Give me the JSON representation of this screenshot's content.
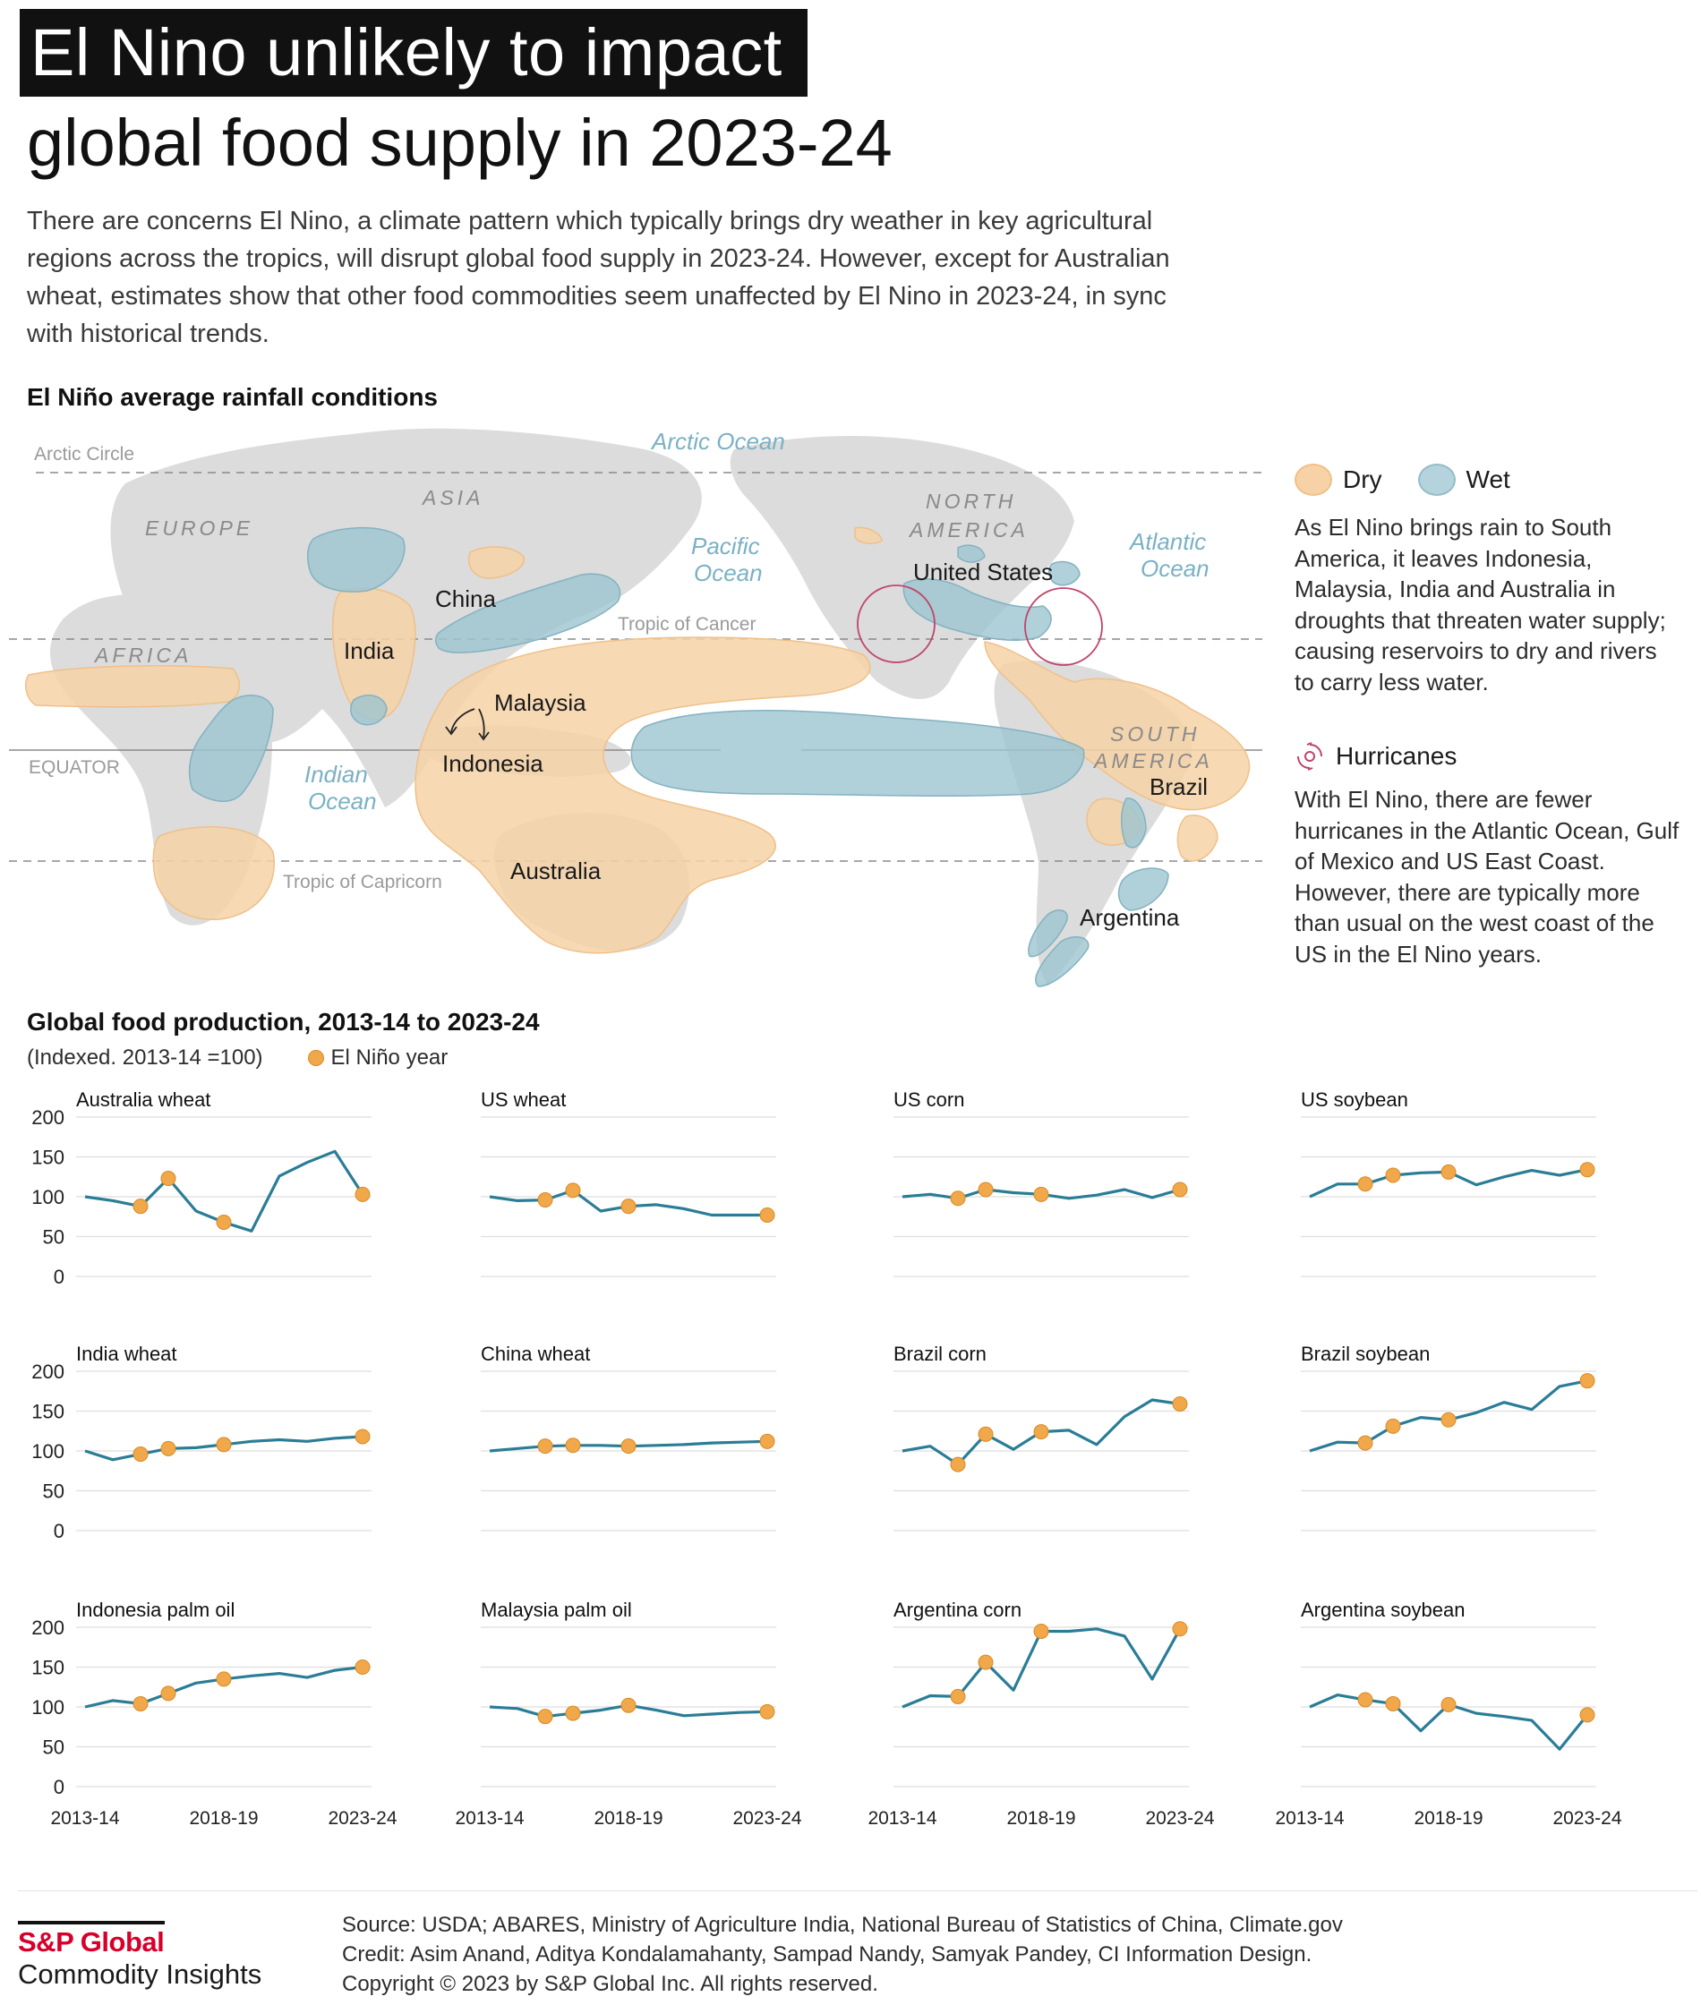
{
  "header": {
    "title_line1": "El Nino unlikely to impact",
    "title_line2": "global food supply in 2023-24",
    "intro": "There are concerns El Nino, a climate pattern which typically brings dry weather in key agricultural regions across the tropics, will disrupt global food supply in 2023-24. However, except for Australian wheat, estimates show that other food commodities seem unaffected by El Nino in 2023-24, in sync with historical trends."
  },
  "map": {
    "title": "El Niño average rainfall conditions",
    "lines": {
      "arctic": "Arctic Circle",
      "cancer": "Tropic of Cancer",
      "equator": "EQUATOR",
      "capricorn": "Tropic of Capricorn"
    },
    "oceans": {
      "arctic": "Arctic Ocean",
      "pacific1": "Pacific",
      "pacific2": "Ocean",
      "atlantic1": "Atlantic",
      "atlantic2": "Ocean",
      "indian1": "Indian",
      "indian2": "Ocean"
    },
    "continents": {
      "europe": "EUROPE",
      "asia": "ASIA",
      "africa": "AFRICA",
      "north_america1": "NORTH",
      "north_america2": "AMERICA",
      "south_america1": "SOUTH",
      "south_america2": "AMERICA"
    },
    "countries": {
      "china": "China",
      "india": "India",
      "malaysia": "Malaysia",
      "indonesia": "Indonesia",
      "australia": "Australia",
      "united_states": "United States",
      "brazil": "Brazil",
      "argentina": "Argentina"
    },
    "colors": {
      "dry": "#f6d2a6",
      "wet": "#9cc4d1",
      "land": "#dcdcdc",
      "hurricane": "#c0446a"
    }
  },
  "legend": {
    "dry": "Dry",
    "wet": "Wet",
    "dry_wet_text": "As El Nino brings rain to South America, it leaves Indonesia, Malaysia, India and Australia in droughts that threaten water supply; causing reservoirs to dry and rivers to carry less water.",
    "hurricanes": "Hurricanes",
    "hurricanes_text": "With El Nino, there are fewer hurricanes in the Atlantic Ocean, Gulf of Mexico and US East Coast. However, there are typically more than usual on the west coast of the US in the El Nino years."
  },
  "production": {
    "title": "Global food production, 2013-14 to 2023-24",
    "note": "(Indexed. 2013-14 =100)",
    "el_nino_label": "El Niño year"
  },
  "chart_data": {
    "type": "line",
    "title": "Global food production, 2013-14 to 2023-24",
    "subtitle": "(Indexed. 2013-14 =100)",
    "x": [
      "2013-14",
      "2014-15",
      "2015-16",
      "2016-17",
      "2017-18",
      "2018-19",
      "2019-20",
      "2020-21",
      "2021-22",
      "2022-23",
      "2023-24"
    ],
    "x_tick_labels": [
      "2013-14",
      "2018-19",
      "2023-24"
    ],
    "y_ticks": [
      0,
      50,
      100,
      150,
      200
    ],
    "ylim": [
      0,
      200
    ],
    "el_nino_indices": [
      2,
      3,
      5,
      10
    ],
    "colors": {
      "line": "#2a7d96",
      "el_nino_marker": "#f0a84a"
    },
    "series": [
      {
        "name": "Australia wheat",
        "values": [
          100,
          95,
          88,
          123,
          82,
          68,
          57,
          126,
          143,
          157,
          103
        ]
      },
      {
        "name": "US wheat",
        "values": [
          100,
          95,
          96,
          108,
          82,
          88,
          90,
          85,
          77,
          77,
          77
        ]
      },
      {
        "name": "US corn",
        "values": [
          100,
          103,
          98,
          109,
          105,
          103,
          98,
          102,
          109,
          99,
          109
        ]
      },
      {
        "name": "US soybean",
        "values": [
          100,
          116,
          116,
          127,
          130,
          131,
          115,
          125,
          133,
          127,
          134
        ]
      },
      {
        "name": "India wheat",
        "values": [
          100,
          89,
          96,
          103,
          104,
          108,
          112,
          114,
          112,
          116,
          118
        ]
      },
      {
        "name": "China wheat",
        "values": [
          100,
          103,
          106,
          107,
          107,
          106,
          107,
          108,
          110,
          111,
          112
        ]
      },
      {
        "name": "Brazil corn",
        "values": [
          100,
          106,
          83,
          121,
          102,
          124,
          126,
          108,
          143,
          164,
          159
        ]
      },
      {
        "name": "Brazil soybean",
        "values": [
          100,
          111,
          110,
          131,
          142,
          139,
          148,
          161,
          152,
          181,
          188
        ]
      },
      {
        "name": "Indonesia palm oil",
        "values": [
          100,
          108,
          104,
          117,
          130,
          135,
          139,
          142,
          137,
          146,
          150
        ]
      },
      {
        "name": "Malaysia palm oil",
        "values": [
          100,
          98,
          88,
          92,
          96,
          102,
          96,
          89,
          91,
          93,
          94
        ]
      },
      {
        "name": "Argentina corn",
        "values": [
          100,
          114,
          113,
          156,
          121,
          195,
          195,
          198,
          189,
          135,
          198
        ]
      },
      {
        "name": "Argentina soybean",
        "values": [
          100,
          115,
          109,
          104,
          70,
          103,
          92,
          88,
          83,
          47,
          90
        ]
      }
    ]
  },
  "footer": {
    "brand": "S&P Global",
    "brand_sub": "Commodity Insights",
    "source": "Source: USDA; ABARES, Ministry of Agriculture India, National Bureau of Statistics of China, Climate.gov",
    "credit": "Credit: Asim Anand, Aditya Kondalamahanty, Sampad Nandy, Samyak Pandey, CI Information Design.",
    "copyright": "Copyright © 2023 by S&P Global Inc. All rights reserved."
  }
}
